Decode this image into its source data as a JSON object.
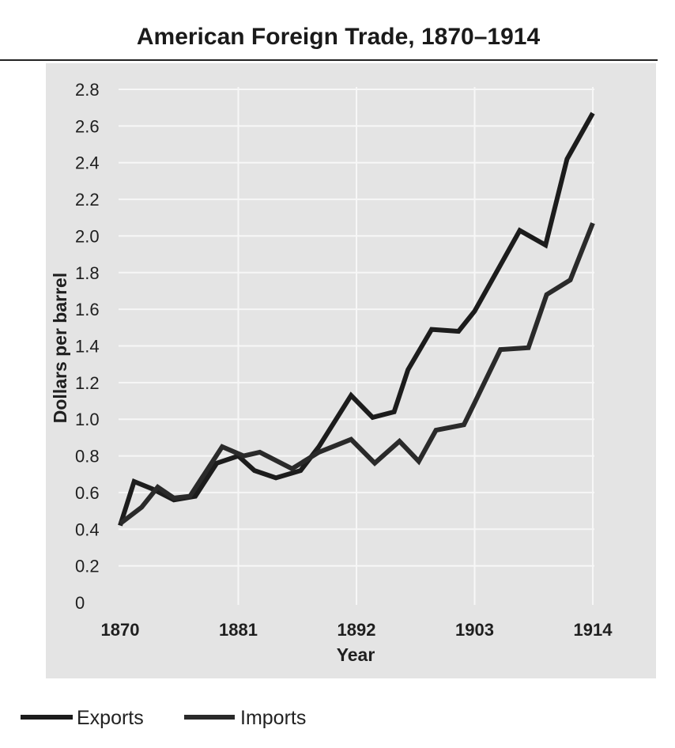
{
  "chart_data": {
    "type": "line",
    "title": "American Foreign Trade, 1870–1914",
    "xlabel": "Year",
    "ylabel": "Dollars per barrel",
    "xlim": [
      1870,
      1914
    ],
    "ylim": [
      0,
      2.8
    ],
    "x_ticks": [
      "1870",
      "1881",
      "1892",
      "1903",
      "1914"
    ],
    "y_ticks": [
      "0",
      "0.2",
      "0.4",
      "0.6",
      "0.8",
      "1.0",
      "1.2",
      "1.4",
      "1.6",
      "1.8",
      "2.0",
      "2.2",
      "2.4",
      "2.6",
      "2.8"
    ],
    "grid": true,
    "legend_position": "bottom-left",
    "series": [
      {
        "name": "Exports",
        "color": "#1c1c1c",
        "points": [
          [
            1870,
            0.42
          ],
          [
            1871.3,
            0.66
          ],
          [
            1873,
            0.62
          ],
          [
            1875,
            0.56
          ],
          [
            1877,
            0.58
          ],
          [
            1879,
            0.76
          ],
          [
            1881,
            0.8
          ],
          [
            1882.5,
            0.72
          ],
          [
            1884.5,
            0.68
          ],
          [
            1886.8,
            0.72
          ],
          [
            1888.5,
            0.85
          ],
          [
            1891.5,
            1.13
          ],
          [
            1893.5,
            1.01
          ],
          [
            1895.5,
            1.04
          ],
          [
            1896.8,
            1.27
          ],
          [
            1899,
            1.49
          ],
          [
            1901.5,
            1.48
          ],
          [
            1903,
            1.59
          ],
          [
            1907.2,
            2.03
          ],
          [
            1909.6,
            1.95
          ],
          [
            1911.6,
            2.42
          ],
          [
            1914,
            2.67
          ]
        ]
      },
      {
        "name": "Imports",
        "color": "#2a2a2a",
        "points": [
          [
            1870,
            0.43
          ],
          [
            1872,
            0.52
          ],
          [
            1873.5,
            0.63
          ],
          [
            1875,
            0.57
          ],
          [
            1876.5,
            0.58
          ],
          [
            1879.5,
            0.85
          ],
          [
            1881.5,
            0.8
          ],
          [
            1883,
            0.82
          ],
          [
            1886,
            0.73
          ],
          [
            1888.5,
            0.82
          ],
          [
            1891.5,
            0.89
          ],
          [
            1893.7,
            0.76
          ],
          [
            1896,
            0.88
          ],
          [
            1897.8,
            0.77
          ],
          [
            1899.4,
            0.94
          ],
          [
            1902,
            0.97
          ],
          [
            1903,
            1.09
          ],
          [
            1905.4,
            1.38
          ],
          [
            1908,
            1.39
          ],
          [
            1909.7,
            1.68
          ],
          [
            1911.9,
            1.76
          ],
          [
            1914,
            2.07
          ]
        ]
      }
    ]
  }
}
